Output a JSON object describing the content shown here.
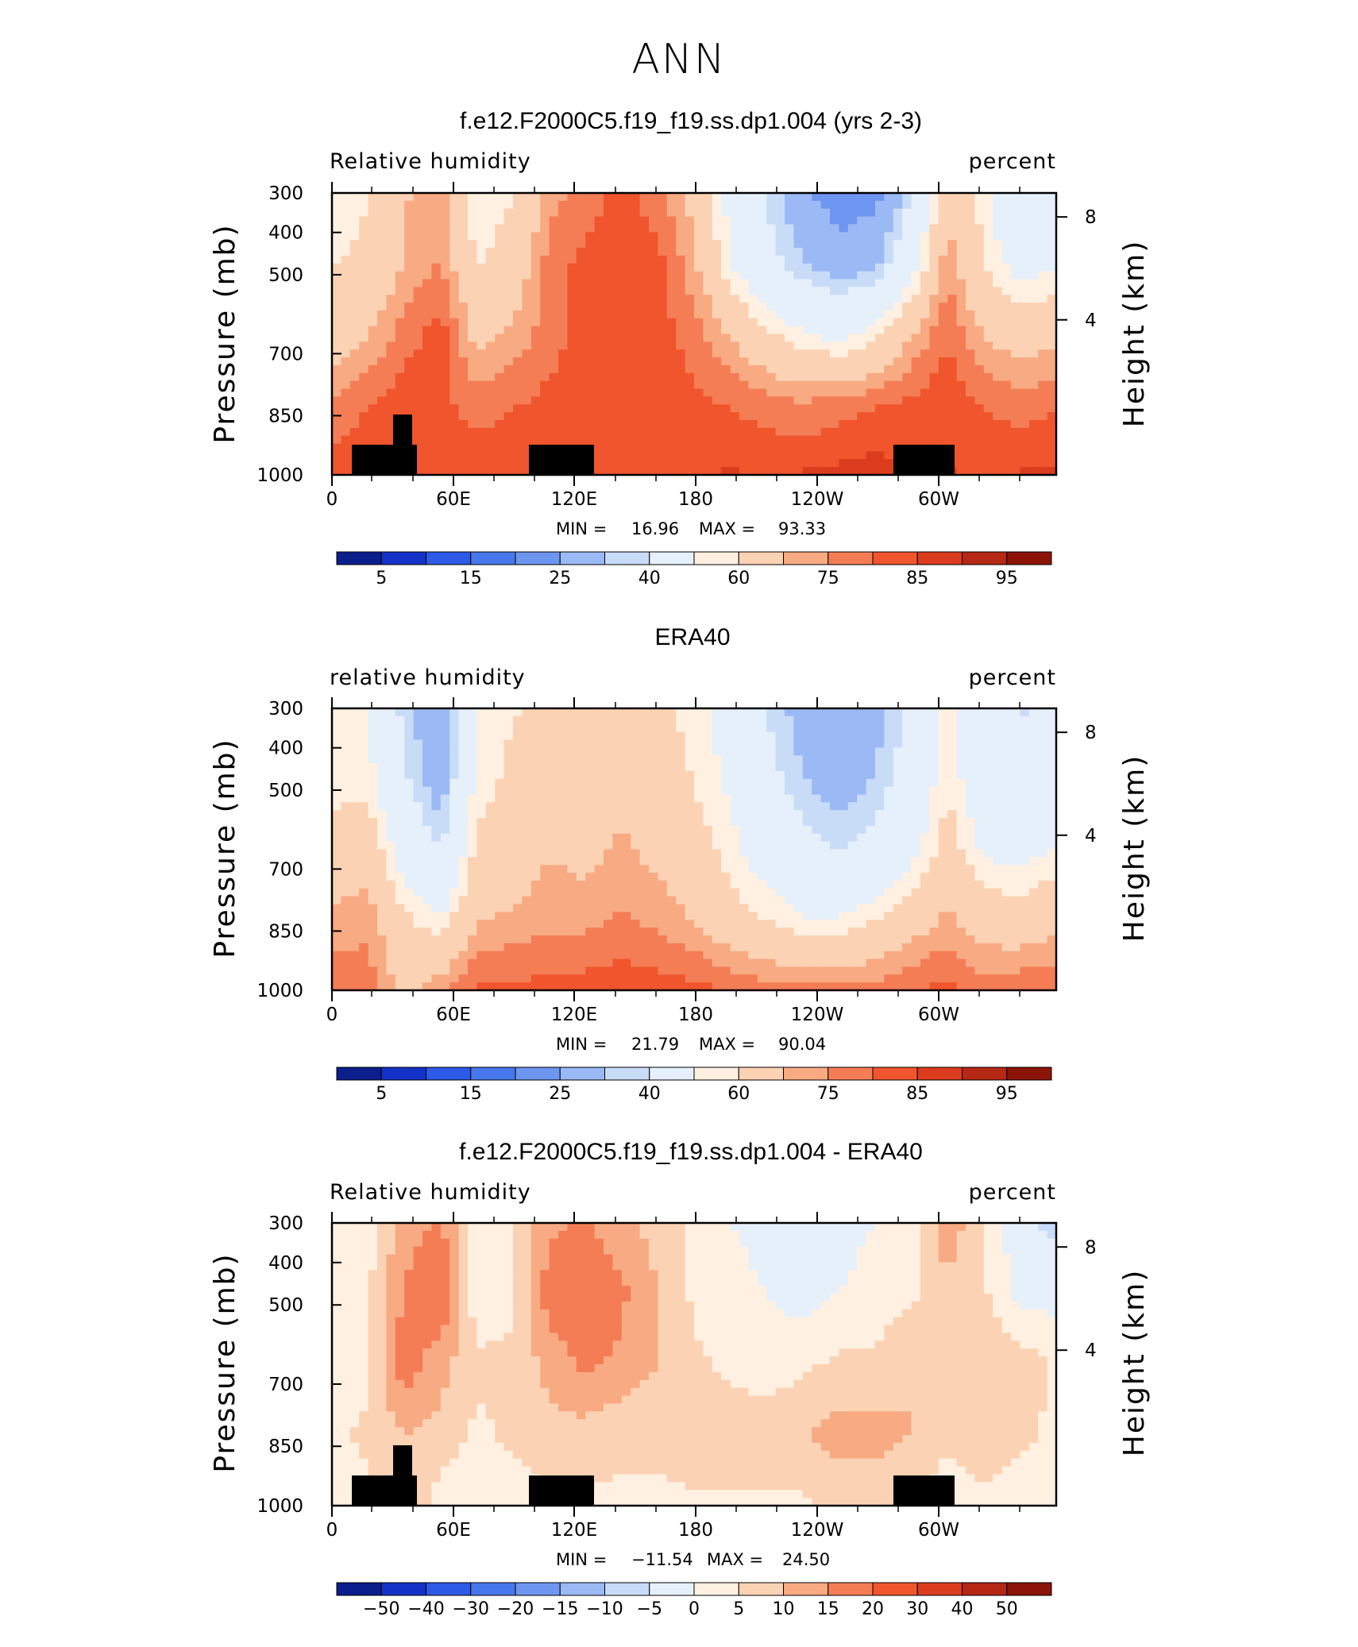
{
  "figure": {
    "title": "ANN"
  },
  "chart_data": [
    {
      "type": "heatmap",
      "title": "f.e12.F2000C5.f19_f19.ss.dp1.004 (yrs 2-3)",
      "left_label": "Relative  humidity",
      "right_label": "percent",
      "xlabel": "",
      "ylabel": "Pressure  (mb)",
      "ylabel_right": "Height  (km)",
      "x_ticks": [
        "0",
        "60E",
        "120E",
        "180",
        "120W",
        "60W"
      ],
      "y_ticks": [
        "300",
        "400",
        "500",
        "700",
        "850",
        "1000"
      ],
      "y_right_ticks": [
        "8",
        "4"
      ],
      "ylim": [
        1000,
        300
      ],
      "min_label": "MIN  =",
      "min_value": "16.96",
      "max_label": "MAX  =",
      "max_value": "93.33",
      "colorbar_ticks": [
        "5",
        "15",
        "25",
        "40",
        "60",
        "75",
        "85",
        "95"
      ],
      "colorbar_colors": [
        "#0a1e8c",
        "#1432c8",
        "#2d5ae6",
        "#4678ec",
        "#6e96f0",
        "#9bb9f4",
        "#c8dcf8",
        "#e6f0fa",
        "#fff0e1",
        "#fcd2b4",
        "#f8aa82",
        "#f47d55",
        "#f0552d",
        "#dc3c1e",
        "#b42814",
        "#8c1409"
      ],
      "field": [
        [
          60,
          62,
          72,
          75,
          58,
          62,
          75,
          80,
          84,
          80,
          70,
          54,
          42,
          30,
          22,
          24,
          42,
          70,
          60,
          45,
          44
        ],
        [
          62,
          64,
          73,
          78,
          62,
          66,
          80,
          84,
          86,
          84,
          74,
          58,
          46,
          38,
          32,
          36,
          52,
          76,
          62,
          54,
          56
        ],
        [
          68,
          72,
          80,
          85,
          70,
          74,
          80,
          85,
          86,
          85,
          80,
          72,
          64,
          58,
          55,
          60,
          72,
          82,
          72,
          68,
          70
        ],
        [
          78,
          82,
          86,
          84,
          80,
          82,
          84,
          86,
          86,
          86,
          84,
          82,
          80,
          78,
          80,
          82,
          84,
          86,
          82,
          80,
          82
        ],
        [
          86,
          88,
          88,
          84,
          86,
          87,
          86,
          86,
          87,
          87,
          87,
          88,
          87,
          88,
          89,
          90,
          88,
          88,
          86,
          88,
          88
        ]
      ]
    },
    {
      "type": "heatmap",
      "title": "ERA40",
      "left_label": "relative  humidity",
      "right_label": "percent",
      "xlabel": "",
      "ylabel": "Pressure  (mb)",
      "ylabel_right": "Height  (km)",
      "x_ticks": [
        "0",
        "60E",
        "120E",
        "180",
        "120W",
        "60W"
      ],
      "y_ticks": [
        "300",
        "400",
        "500",
        "700",
        "850",
        "1000"
      ],
      "y_right_ticks": [
        "8",
        "4"
      ],
      "ylim": [
        1000,
        300
      ],
      "min_label": "MIN  =",
      "min_value": "21.79",
      "max_label": "MAX  =",
      "max_value": "90.04",
      "colorbar_ticks": [
        "5",
        "15",
        "25",
        "40",
        "60",
        "75",
        "85",
        "95"
      ],
      "colorbar_colors": [
        "#0a1e8c",
        "#1432c8",
        "#2d5ae6",
        "#4678ec",
        "#6e96f0",
        "#9bb9f4",
        "#c8dcf8",
        "#e6f0fa",
        "#fff0e1",
        "#fcd2b4",
        "#f8aa82",
        "#f47d55",
        "#f0552d",
        "#dc3c1e",
        "#b42814",
        "#8c1409"
      ],
      "field": [
        [
          58,
          58,
          40,
          28,
          58,
          62,
          64,
          64,
          66,
          64,
          60,
          54,
          42,
          34,
          28,
          34,
          44,
          60,
          46,
          42,
          44
        ],
        [
          60,
          60,
          44,
          32,
          60,
          64,
          68,
          68,
          70,
          68,
          62,
          56,
          46,
          38,
          32,
          38,
          48,
          62,
          50,
          46,
          50
        ],
        [
          66,
          68,
          52,
          42,
          64,
          66,
          72,
          70,
          74,
          70,
          66,
          60,
          52,
          46,
          42,
          46,
          54,
          66,
          56,
          54,
          58
        ],
        [
          74,
          76,
          64,
          58,
          72,
          74,
          76,
          76,
          78,
          76,
          72,
          66,
          62,
          58,
          58,
          62,
          68,
          74,
          68,
          66,
          70
        ],
        [
          82,
          80,
          70,
          76,
          84,
          84,
          84,
          85,
          86,
          85,
          84,
          82,
          80,
          80,
          80,
          80,
          82,
          84,
          80,
          82,
          82
        ]
      ]
    },
    {
      "type": "heatmap",
      "title": "f.e12.F2000C5.f19_f19.ss.dp1.004 - ERA40",
      "left_label": "Relative  humidity",
      "right_label": "percent",
      "xlabel": "",
      "ylabel": "Pressure  (mb)",
      "ylabel_right": "Height  (km)",
      "x_ticks": [
        "0",
        "60E",
        "120E",
        "180",
        "120W",
        "60W"
      ],
      "y_ticks": [
        "300",
        "400",
        "500",
        "700",
        "850",
        "1000"
      ],
      "y_right_ticks": [
        "8",
        "4"
      ],
      "ylim": [
        1000,
        300
      ],
      "min_label": "MIN  =",
      "min_value": "−11.54",
      "max_label": "MAX  =",
      "max_value": "24.50",
      "colorbar_ticks": [
        "−50",
        "−40",
        "−30",
        "−20",
        "−15",
        "−10",
        "−5",
        "0",
        "5",
        "10",
        "15",
        "20",
        "30",
        "40",
        "50"
      ],
      "colorbar_colors": [
        "#0a1e8c",
        "#1432c8",
        "#2d5ae6",
        "#4678ec",
        "#6e96f0",
        "#9bb9f4",
        "#c8dcf8",
        "#e6f0fa",
        "#fff0e1",
        "#fcd2b4",
        "#f8aa82",
        "#f47d55",
        "#f0552d",
        "#dc3c1e",
        "#b42814",
        "#8c1409"
      ],
      "field": [
        [
          2,
          3,
          12,
          16,
          2,
          5,
          14,
          16,
          12,
          8,
          4,
          0,
          -2,
          -3,
          -2,
          0,
          2,
          14,
          4,
          -4,
          -6
        ],
        [
          2,
          4,
          16,
          20,
          2,
          4,
          18,
          18,
          16,
          10,
          4,
          2,
          0,
          -2,
          0,
          2,
          4,
          8,
          6,
          -2,
          -2
        ],
        [
          2,
          4,
          18,
          12,
          6,
          6,
          12,
          16,
          14,
          10,
          6,
          4,
          2,
          4,
          6,
          6,
          10,
          10,
          10,
          8,
          4
        ],
        [
          4,
          6,
          10,
          8,
          4,
          6,
          8,
          8,
          6,
          6,
          8,
          8,
          8,
          10,
          12,
          12,
          10,
          6,
          8,
          6,
          4
        ],
        [
          2,
          4,
          10,
          2,
          2,
          2,
          4,
          4,
          4,
          4,
          4,
          4,
          4,
          4,
          6,
          6,
          4,
          2,
          4,
          2,
          4
        ]
      ]
    }
  ]
}
